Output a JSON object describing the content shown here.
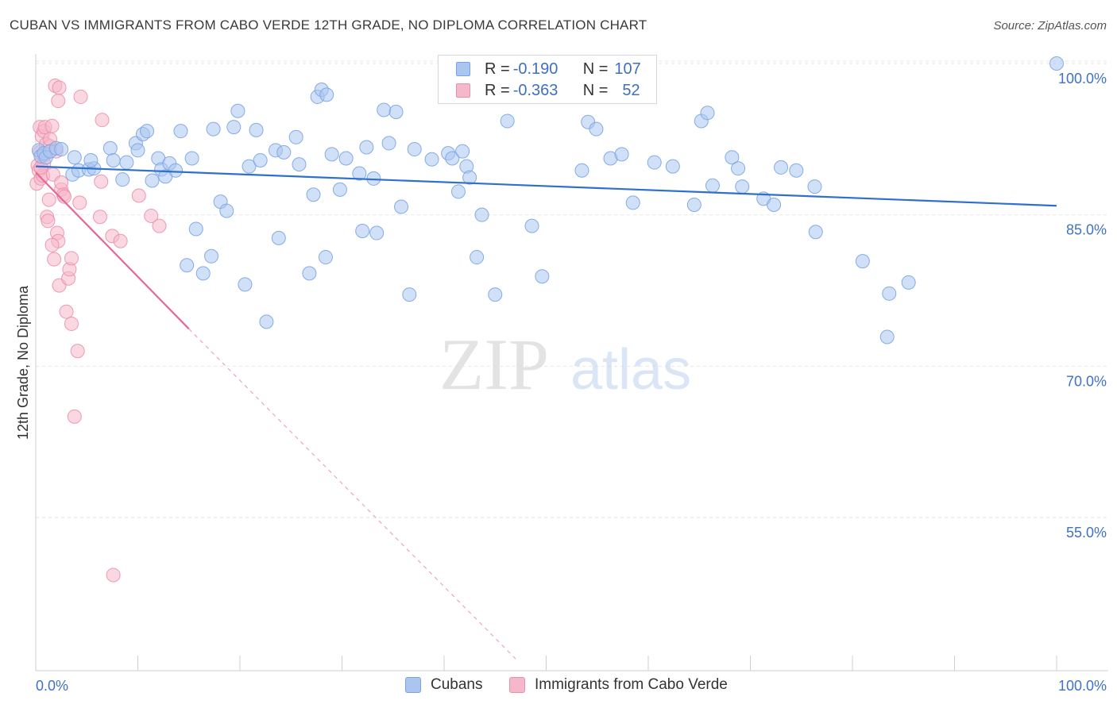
{
  "header": {
    "title": "CUBAN VS IMMIGRANTS FROM CABO VERDE 12TH GRADE, NO DIPLOMA CORRELATION CHART",
    "source": "Source: ZipAtlas.com"
  },
  "watermark": {
    "zip": "ZIP",
    "atlas": "atlas"
  },
  "stats_legend": {
    "rows": [
      {
        "r_label": "R = ",
        "r_value": "-0.190",
        "n_label": "N = ",
        "n_value": "107",
        "color": "#aac6f0"
      },
      {
        "r_label": "R = ",
        "r_value": "-0.363",
        "n_label": "N = ",
        "n_value": "52",
        "color": "#f5b8cb"
      }
    ]
  },
  "chart_data": {
    "type": "scatter",
    "title": "CUBAN VS IMMIGRANTS FROM CABO VERDE 12TH GRADE, NO DIPLOMA CORRELATION CHART",
    "xlabel": "",
    "ylabel": "12th Grade, No Diploma",
    "xlim": [
      0,
      100
    ],
    "ylim": [
      40,
      102
    ],
    "x_tick_labels": [
      "0.0%",
      "100.0%"
    ],
    "y_ticks": [
      55,
      70,
      85,
      100
    ],
    "y_tick_labels": [
      "55.0%",
      "70.0%",
      "85.0%",
      "100.0%"
    ],
    "grid": true,
    "legend_position": "bottom-center",
    "series": [
      {
        "name": "Cubans",
        "color": "#aac6f0",
        "stroke": "#7ba3e3",
        "line_color": "#2f6fcf",
        "trend": {
          "x": [
            0,
            100
          ],
          "y": [
            89.8,
            85.9
          ]
        },
        "points": [
          [
            0.3,
            91.4
          ],
          [
            0.5,
            90.8
          ],
          [
            0.8,
            91.1
          ],
          [
            1.0,
            90.7
          ],
          [
            1.4,
            91.3
          ],
          [
            2.0,
            91.6
          ],
          [
            2.5,
            91.5
          ],
          [
            3.6,
            89.0
          ],
          [
            3.8,
            90.7
          ],
          [
            4.2,
            89.4
          ],
          [
            5.2,
            89.5
          ],
          [
            5.7,
            89.6
          ],
          [
            5.4,
            90.4
          ],
          [
            7.3,
            91.6
          ],
          [
            7.6,
            90.4
          ],
          [
            8.5,
            88.5
          ],
          [
            8.9,
            90.2
          ],
          [
            9.8,
            92.1
          ],
          [
            10.0,
            91.4
          ],
          [
            10.5,
            93.0
          ],
          [
            10.9,
            93.3
          ],
          [
            11.4,
            88.4
          ],
          [
            12.0,
            90.6
          ],
          [
            12.3,
            89.5
          ],
          [
            12.7,
            88.8
          ],
          [
            13.1,
            90.1
          ],
          [
            13.7,
            89.4
          ],
          [
            14.2,
            93.3
          ],
          [
            15.3,
            90.6
          ],
          [
            15.7,
            83.6
          ],
          [
            14.8,
            80.0
          ],
          [
            16.4,
            79.2
          ],
          [
            17.2,
            80.9
          ],
          [
            17.4,
            93.5
          ],
          [
            18.1,
            86.3
          ],
          [
            18.7,
            85.4
          ],
          [
            19.4,
            93.7
          ],
          [
            19.8,
            95.3
          ],
          [
            20.5,
            78.1
          ],
          [
            20.9,
            89.8
          ],
          [
            21.6,
            93.4
          ],
          [
            22.0,
            90.4
          ],
          [
            22.6,
            74.4
          ],
          [
            23.5,
            91.4
          ],
          [
            23.8,
            82.7
          ],
          [
            24.3,
            91.2
          ],
          [
            25.5,
            92.7
          ],
          [
            25.8,
            90.0
          ],
          [
            26.8,
            79.2
          ],
          [
            27.2,
            87.0
          ],
          [
            27.6,
            96.7
          ],
          [
            28.0,
            97.4
          ],
          [
            28.5,
            96.9
          ],
          [
            28.4,
            80.8
          ],
          [
            29.0,
            91.0
          ],
          [
            29.8,
            87.5
          ],
          [
            30.4,
            90.6
          ],
          [
            31.7,
            89.1
          ],
          [
            32.0,
            83.4
          ],
          [
            32.4,
            91.7
          ],
          [
            33.1,
            88.6
          ],
          [
            33.4,
            83.2
          ],
          [
            34.1,
            95.4
          ],
          [
            34.6,
            92.1
          ],
          [
            35.3,
            95.2
          ],
          [
            35.8,
            85.8
          ],
          [
            36.6,
            77.1
          ],
          [
            37.1,
            91.5
          ],
          [
            38.8,
            90.5
          ],
          [
            40.4,
            91.1
          ],
          [
            40.8,
            90.6
          ],
          [
            41.4,
            87.3
          ],
          [
            41.8,
            91.3
          ],
          [
            42.2,
            89.8
          ],
          [
            42.5,
            88.7
          ],
          [
            43.2,
            80.8
          ],
          [
            43.7,
            85.0
          ],
          [
            45.0,
            77.1
          ],
          [
            46.2,
            94.3
          ],
          [
            48.6,
            83.9
          ],
          [
            49.6,
            78.9
          ],
          [
            53.5,
            89.4
          ],
          [
            54.1,
            94.2
          ],
          [
            54.9,
            93.5
          ],
          [
            56.3,
            90.6
          ],
          [
            57.4,
            91.0
          ],
          [
            58.5,
            86.2
          ],
          [
            60.6,
            90.2
          ],
          [
            62.4,
            89.8
          ],
          [
            64.5,
            86.0
          ],
          [
            65.2,
            94.3
          ],
          [
            65.8,
            95.1
          ],
          [
            66.3,
            87.9
          ],
          [
            68.2,
            90.7
          ],
          [
            68.8,
            89.6
          ],
          [
            69.2,
            87.8
          ],
          [
            71.3,
            86.6
          ],
          [
            72.3,
            86.0
          ],
          [
            73.0,
            89.7
          ],
          [
            74.5,
            89.4
          ],
          [
            76.3,
            87.8
          ],
          [
            76.4,
            83.3
          ],
          [
            81.0,
            80.4
          ],
          [
            83.4,
            72.9
          ],
          [
            83.6,
            77.2
          ],
          [
            85.5,
            78.3
          ],
          [
            100.0,
            100.0
          ]
        ]
      },
      {
        "name": "Immigrants from Cabo Verde",
        "color": "#f5b8cb",
        "stroke": "#ec8fac",
        "line_color": "#e5679a",
        "trend": {
          "x": [
            0,
            15
          ],
          "y": [
            89.2,
            73.7
          ]
        },
        "trend_dashed": {
          "x": [
            15,
            47
          ],
          "y": [
            73.7,
            41.0
          ]
        },
        "points": [
          [
            0.1,
            88.1
          ],
          [
            0.2,
            89.9
          ],
          [
            0.3,
            89.4
          ],
          [
            0.4,
            91.2
          ],
          [
            0.4,
            93.7
          ],
          [
            0.5,
            88.6
          ],
          [
            0.6,
            92.8
          ],
          [
            0.7,
            88.9
          ],
          [
            0.8,
            93.3
          ],
          [
            0.8,
            90.1
          ],
          [
            0.9,
            93.7
          ],
          [
            1.0,
            92.0
          ],
          [
            1.1,
            84.8
          ],
          [
            1.2,
            84.4
          ],
          [
            1.3,
            86.5
          ],
          [
            1.4,
            91.8
          ],
          [
            1.4,
            92.5
          ],
          [
            1.6,
            93.8
          ],
          [
            1.7,
            89.0
          ],
          [
            1.8,
            80.6
          ],
          [
            1.9,
            97.8
          ],
          [
            2.0,
            91.3
          ],
          [
            2.1,
            83.2
          ],
          [
            2.2,
            82.4
          ],
          [
            2.2,
            96.3
          ],
          [
            2.3,
            78.0
          ],
          [
            2.3,
            97.6
          ],
          [
            2.5,
            87.5
          ],
          [
            2.5,
            88.2
          ],
          [
            2.7,
            87.0
          ],
          [
            2.8,
            86.8
          ],
          [
            3.0,
            75.4
          ],
          [
            3.2,
            78.7
          ],
          [
            3.3,
            79.6
          ],
          [
            3.5,
            80.7
          ],
          [
            3.5,
            74.2
          ],
          [
            3.8,
            65.0
          ],
          [
            4.1,
            71.5
          ],
          [
            4.3,
            86.2
          ],
          [
            4.4,
            96.7
          ],
          [
            6.3,
            84.8
          ],
          [
            6.4,
            88.3
          ],
          [
            6.5,
            94.4
          ],
          [
            7.5,
            82.9
          ],
          [
            8.3,
            82.4
          ],
          [
            7.6,
            49.3
          ],
          [
            10.1,
            86.9
          ],
          [
            11.3,
            84.9
          ],
          [
            12.1,
            83.9
          ],
          [
            1.6,
            82.0
          ],
          [
            0.9,
            91.0
          ],
          [
            0.5,
            89.7
          ]
        ]
      }
    ]
  }
}
